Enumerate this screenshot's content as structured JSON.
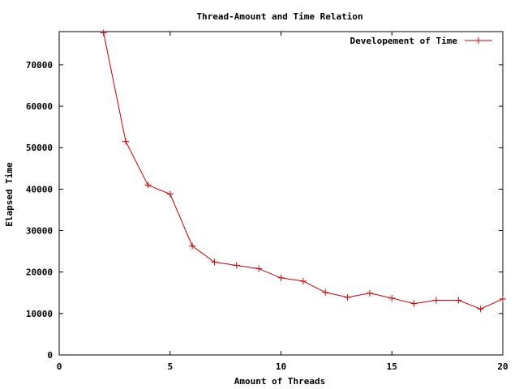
{
  "chart_data": {
    "type": "line",
    "title": "Thread-Amount and Time Relation",
    "xlabel": "Amount of Threads",
    "ylabel": "Elapsed Time",
    "xlim": [
      0,
      20
    ],
    "ylim": [
      0,
      78000
    ],
    "x_ticks": [
      0,
      5,
      10,
      15,
      20
    ],
    "y_ticks": [
      0,
      10000,
      20000,
      30000,
      40000,
      50000,
      60000,
      70000
    ],
    "grid": false,
    "legend_position": "top-right",
    "series": [
      {
        "name": "Developement of Time",
        "color": "#d00000",
        "marker": "plus",
        "x": [
          2,
          3,
          4,
          5,
          6,
          7,
          8,
          9,
          10,
          11,
          12,
          13,
          14,
          15,
          16,
          17,
          18,
          19,
          20
        ],
        "y": [
          77700,
          51500,
          41000,
          38800,
          26300,
          22400,
          21600,
          20800,
          18600,
          17800,
          15100,
          13900,
          14900,
          13700,
          12400,
          13200,
          13200,
          11100,
          13500
        ]
      }
    ]
  }
}
